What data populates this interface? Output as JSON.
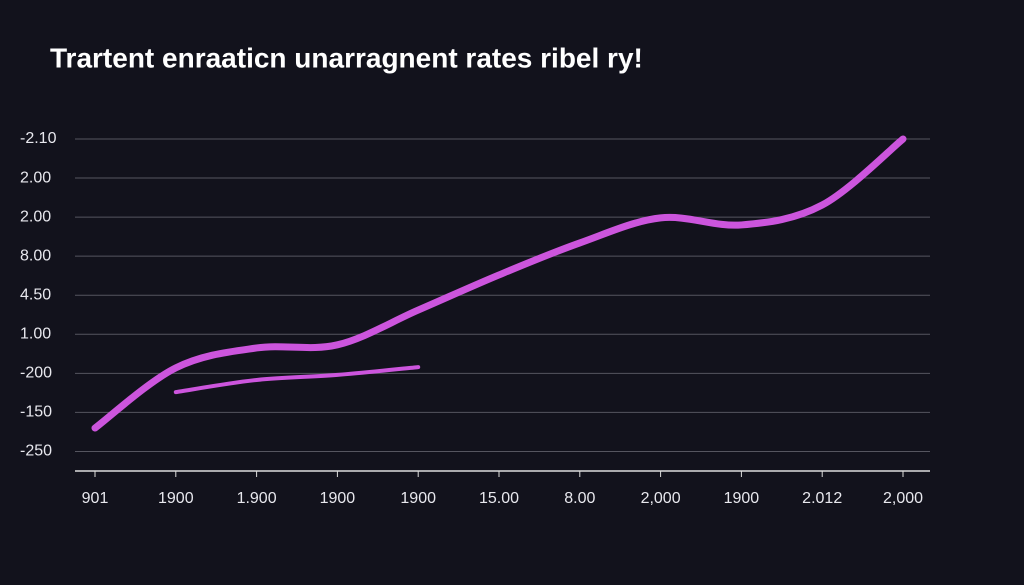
{
  "chart_data": {
    "type": "line",
    "title": "Trartent enraaticn unarragnent rates ribel ry!",
    "categories": [
      "901",
      "1900",
      "1.900",
      "1900",
      "1900",
      "15.00",
      "8.00",
      "2,000",
      "1900",
      "2.012",
      "2,000"
    ],
    "series": [
      {
        "color": "#cc55dd",
        "values": [
          0.6,
          2.14,
          2.65,
          2.73,
          3.62,
          4.52,
          5.34,
          5.98,
          5.8,
          6.31,
          8.0
        ]
      },
      {
        "color": "#cc55dd",
        "values": [
          null,
          1.52,
          1.83,
          1.96,
          2.16,
          null,
          null,
          null,
          null,
          null,
          null
        ]
      }
    ],
    "ylim": [
      -0.5,
      8
    ],
    "yticks": [
      {
        "value": 8,
        "label": "-2.10"
      },
      {
        "value": 7,
        "label": "2.00"
      },
      {
        "value": 6,
        "label": "2.00"
      },
      {
        "value": 5,
        "label": "8.00"
      },
      {
        "value": 4,
        "label": "4.50"
      },
      {
        "value": 3,
        "label": "1.00"
      },
      {
        "value": 2,
        "label": "-200"
      },
      {
        "value": 1,
        "label": "-150"
      },
      {
        "value": 0,
        "label": "-250"
      }
    ],
    "grid": true
  }
}
